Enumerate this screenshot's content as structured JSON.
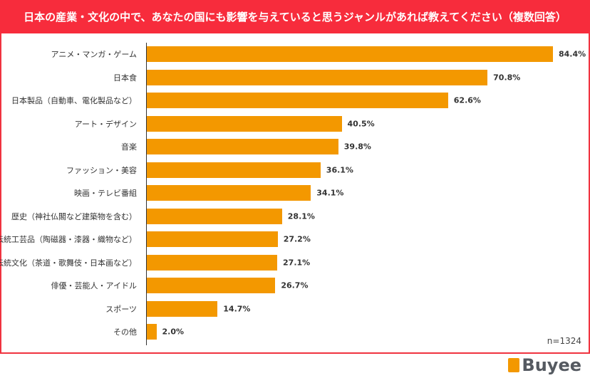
{
  "chart_data": {
    "type": "bar",
    "orientation": "horizontal",
    "title": "日本の産業・文化の中で、あなたの国にも影響を与えていると思うジャンルがあれば教えてください（複数回答）",
    "categories": [
      "アニメ・マンガ・ゲーム",
      "日本食",
      "日本製品（自動車、電化製品など）",
      "アート・デザイン",
      "音楽",
      "ファッション・美容",
      "映画・テレビ番組",
      "歴史（神社仏閣など建築物を含む）",
      "伝統工芸品（陶磁器・漆器・織物など）",
      "伝統文化（茶道・歌舞伎・日本画など）",
      "俳優・芸能人・アイドル",
      "スポーツ",
      "その他"
    ],
    "values": [
      84.4,
      70.8,
      62.6,
      40.5,
      39.8,
      36.1,
      34.1,
      28.1,
      27.2,
      27.1,
      26.7,
      14.7,
      2.0
    ],
    "value_labels": [
      "84.4%",
      "70.8%",
      "62.6%",
      "40.5%",
      "39.8%",
      "36.1%",
      "34.1%",
      "28.1%",
      "27.2%",
      "27.1%",
      "26.7%",
      "14.7%",
      "2.0%"
    ],
    "xlim": [
      0,
      100
    ],
    "bar_color": "#f39800",
    "header_color": "#f72c3c",
    "note": "n=1324"
  },
  "logo": "Buyee"
}
